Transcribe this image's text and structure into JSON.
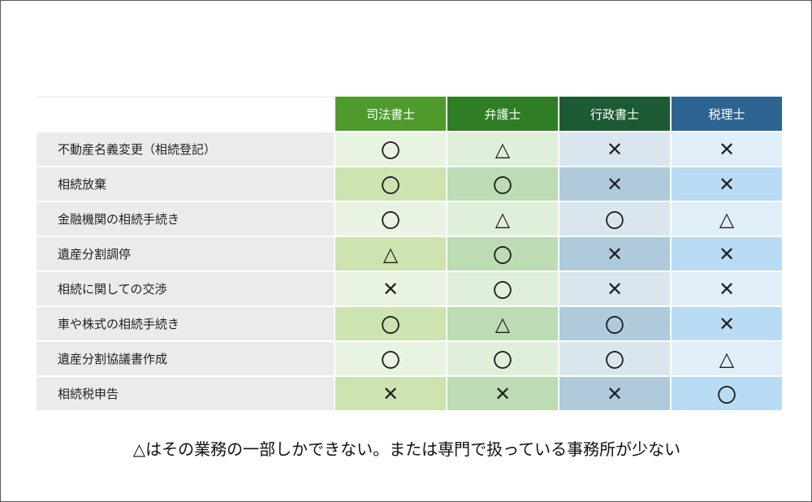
{
  "columns": [
    {
      "label": "司法書士",
      "header_color": "#4f9a2c",
      "cell_colors": [
        "#e9f3e2",
        "#cde3b0"
      ]
    },
    {
      "label": "弁護士",
      "header_color": "#2f7d25",
      "cell_colors": [
        "#e0efda",
        "#bcdcb3"
      ]
    },
    {
      "label": "行政書士",
      "header_color": "#1c5a33",
      "cell_colors": [
        "#d9e6ee",
        "#afcbdb"
      ]
    },
    {
      "label": "税理士",
      "header_color": "#2d6391",
      "cell_colors": [
        "#e0eef9",
        "#b9dbf3"
      ]
    }
  ],
  "rows": [
    {
      "label": "不動産名義変更（相続登記）",
      "marks": [
        "〇",
        "△",
        "✕",
        "✕"
      ]
    },
    {
      "label": "相続放棄",
      "marks": [
        "〇",
        "〇",
        "✕",
        "✕"
      ]
    },
    {
      "label": "金融機関の相続手続き",
      "marks": [
        "〇",
        "△",
        "〇",
        "△"
      ]
    },
    {
      "label": "遺産分割調停",
      "marks": [
        "△",
        "〇",
        "✕",
        "✕"
      ]
    },
    {
      "label": "相続に関しての交渉",
      "marks": [
        "✕",
        "〇",
        "✕",
        "✕"
      ]
    },
    {
      "label": "車や株式の相続手続き",
      "marks": [
        "〇",
        "△",
        "〇",
        "✕"
      ]
    },
    {
      "label": "遺産分割協議書作成",
      "marks": [
        "〇",
        "〇",
        "〇",
        "△"
      ]
    },
    {
      "label": "相続税申告",
      "marks": [
        "✕",
        "✕",
        "✕",
        "〇"
      ]
    }
  ],
  "footnote": "△はその業務の一部しかできない。または専門で扱っている事務所が少ない"
}
